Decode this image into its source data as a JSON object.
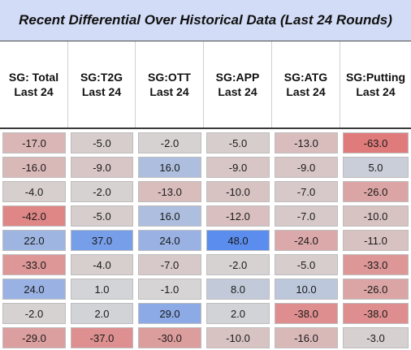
{
  "title": "Recent Differential Over Historical Data (Last 24 Rounds)",
  "headers": [
    {
      "line1": "SG: Total",
      "line2": "Last 24"
    },
    {
      "line1": "SG:T2G",
      "line2": "Last 24"
    },
    {
      "line1": "SG:OTT",
      "line2": "Last 24"
    },
    {
      "line1": "SG:APP",
      "line2": "Last 24"
    },
    {
      "line1": "SG:ATG",
      "line2": "Last 24"
    },
    {
      "line1": "SG:Putting",
      "line2": "Last 24"
    }
  ],
  "rows": [
    [
      "-17.0",
      "-5.0",
      "-2.0",
      "-5.0",
      "-13.0",
      "-63.0"
    ],
    [
      "-16.0",
      "-9.0",
      "16.0",
      "-9.0",
      "-9.0",
      "5.0"
    ],
    [
      "-4.0",
      "-2.0",
      "-13.0",
      "-10.0",
      "-7.0",
      "-26.0"
    ],
    [
      "-42.0",
      "-5.0",
      "16.0",
      "-12.0",
      "-7.0",
      "-10.0"
    ],
    [
      "22.0",
      "37.0",
      "24.0",
      "48.0",
      "-24.0",
      "-11.0"
    ],
    [
      "-33.0",
      "-4.0",
      "-7.0",
      "-2.0",
      "-5.0",
      "-33.0"
    ],
    [
      "24.0",
      "1.0",
      "-1.0",
      "8.0",
      "10.0",
      "-26.0"
    ],
    [
      "-2.0",
      "2.0",
      "29.0",
      "2.0",
      "-38.0",
      "-38.0"
    ],
    [
      "-29.0",
      "-37.0",
      "-30.0",
      "-10.0",
      "-16.0",
      "-3.0"
    ]
  ],
  "colors": {
    "title_bg": "#d3dcf6",
    "neutral": "#d6d6d6",
    "positive": "#5b8def",
    "negative": "#e07b7b"
  }
}
